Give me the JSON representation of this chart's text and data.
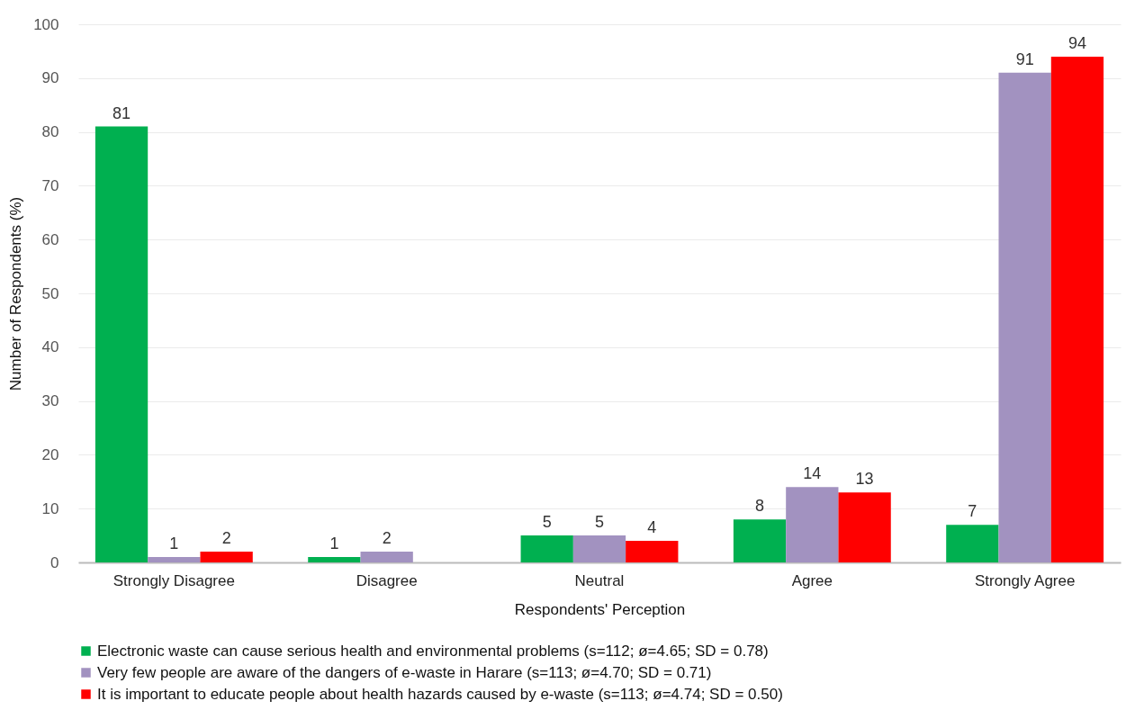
{
  "chart_data": {
    "type": "bar",
    "xlabel": "Respondents' Perception",
    "ylabel": "Number of Respondents (%)",
    "categories": [
      "Strongly Disagree",
      "Disagree",
      "Neutral",
      "Agree",
      "Strongly Agree"
    ],
    "series": [
      {
        "name": "Electronic waste can cause serious health and environmental problems (s=112; ø=4.65; SD = 0.78)",
        "color": "#00b050",
        "values": [
          81,
          1,
          5,
          8,
          7
        ]
      },
      {
        "name": "Very few people are aware of the dangers of e-waste in Harare (s=113; ø=4.70; SD = 0.71)",
        "color": "#a292c0",
        "values": [
          1,
          2,
          5,
          14,
          91
        ]
      },
      {
        "name": "It is important to educate people about health hazards caused by e-waste (s=113; ø=4.74; SD = 0.50)",
        "color": "#ff0000",
        "values": [
          2,
          null,
          4,
          13,
          94
        ]
      }
    ],
    "ylim": [
      0,
      100
    ],
    "yticks": [
      0,
      10,
      20,
      30,
      40,
      50,
      60,
      70,
      80,
      90,
      100
    ],
    "grid": "y",
    "legend": "bottom",
    "data_labels": true
  }
}
